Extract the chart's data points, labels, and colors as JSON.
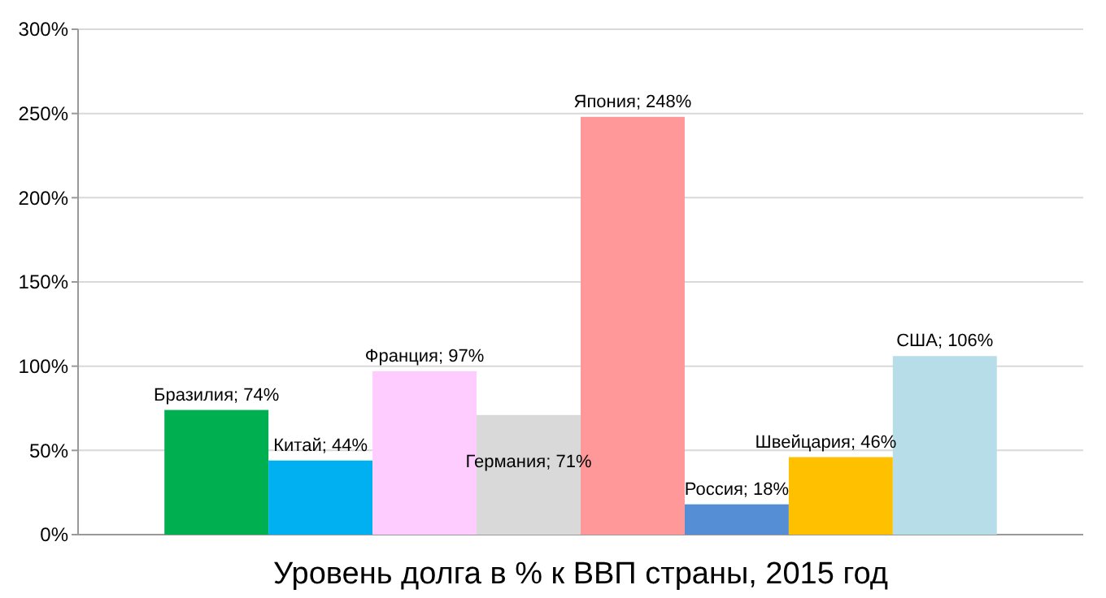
{
  "chart_data": {
    "type": "bar",
    "title": "Уровень долга в % к ВВП страны, 2015 год",
    "categories": [
      null,
      null,
      null,
      null,
      null,
      null,
      null,
      null
    ],
    "values": [
      74,
      44,
      97,
      71,
      248,
      18,
      46,
      106
    ],
    "colors": [
      "#00b050",
      "#00b0f0",
      "#ffccff",
      "#d9d9d9",
      "#ff9999",
      "#558ed5",
      "#ffc000",
      "#b7dee8"
    ],
    "value_labels": [
      "Бразилия; 74%",
      "Китай; 44%",
      "Франция; 97%",
      "Германия; 71%",
      "Япония; 248%",
      "Россия; 18%",
      "Швейцария; 46%",
      "США; 106%"
    ],
    "ylim": [
      0,
      300
    ],
    "yticks": [
      {
        "value": 0,
        "label": "0%"
      },
      {
        "value": 50,
        "label": "50%"
      },
      {
        "value": 100,
        "label": "100%"
      },
      {
        "value": 150,
        "label": "150%"
      },
      {
        "value": 200,
        "label": "200%"
      },
      {
        "value": 250,
        "label": "250%"
      },
      {
        "value": 300,
        "label": "300%"
      }
    ],
    "grid": "y",
    "tick_labels": "y"
  }
}
